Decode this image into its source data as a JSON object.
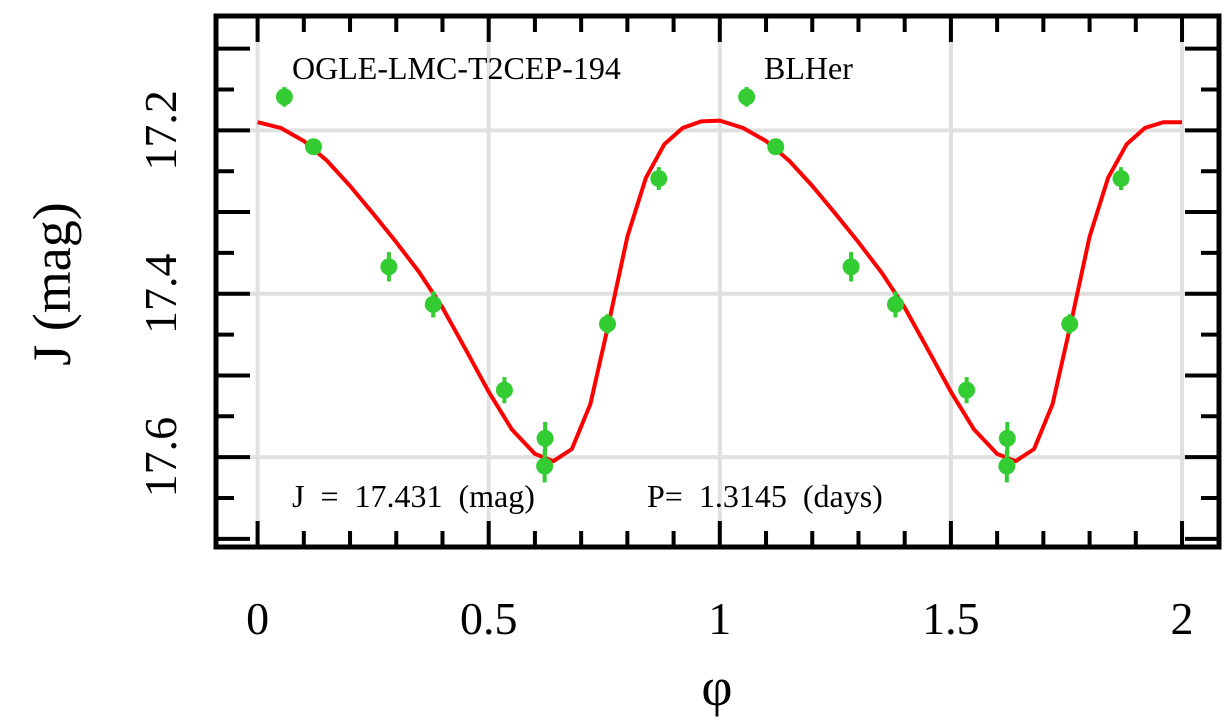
{
  "chart_data": {
    "type": "scatter",
    "title": "",
    "star_name": "OGLE-LMC-T2CEP-194",
    "star_type": "BLHer",
    "xlabel": "φ",
    "ylabel": "J (mag)",
    "xlim": [
      -0.09,
      2.08
    ],
    "ylim": [
      17.71,
      17.06
    ],
    "y_reversed": true,
    "grid": true,
    "x_ticks": [
      0,
      0.5,
      1,
      1.5,
      2
    ],
    "x_tick_labels": [
      "0",
      "0.5",
      "1",
      "1.5",
      "2"
    ],
    "y_ticks": [
      17.2,
      17.4,
      17.6
    ],
    "y_tick_labels": [
      "17.2",
      "17.4",
      "17.6"
    ],
    "mean_mag_text": "J  =  17.431  (mag)",
    "period_text": "P=  1.3145  (days)",
    "colors": {
      "points": "#33cc33",
      "fit": "#ff0000",
      "grid": "#e0e0e0"
    },
    "series": [
      {
        "kind": "observations",
        "points": [
          {
            "x": 0.058,
            "y": 17.159,
            "err": 0.012
          },
          {
            "x": 0.121,
            "y": 17.22,
            "err": 0.01
          },
          {
            "x": 0.284,
            "y": 17.367,
            "err": 0.018
          },
          {
            "x": 0.38,
            "y": 17.413,
            "err": 0.016
          },
          {
            "x": 0.534,
            "y": 17.518,
            "err": 0.016
          },
          {
            "x": 0.622,
            "y": 17.577,
            "err": 0.02
          },
          {
            "x": 0.621,
            "y": 17.611,
            "err": 0.02
          },
          {
            "x": 0.757,
            "y": 17.437,
            "err": 0.012
          },
          {
            "x": 0.868,
            "y": 17.259,
            "err": 0.014
          },
          {
            "x": 1.058,
            "y": 17.159,
            "err": 0.012
          },
          {
            "x": 1.121,
            "y": 17.22,
            "err": 0.01
          },
          {
            "x": 1.284,
            "y": 17.367,
            "err": 0.018
          },
          {
            "x": 1.38,
            "y": 17.413,
            "err": 0.016
          },
          {
            "x": 1.534,
            "y": 17.518,
            "err": 0.016
          },
          {
            "x": 1.622,
            "y": 17.577,
            "err": 0.02
          },
          {
            "x": 1.621,
            "y": 17.611,
            "err": 0.02
          },
          {
            "x": 1.757,
            "y": 17.437,
            "err": 0.012
          },
          {
            "x": 1.868,
            "y": 17.259,
            "err": 0.014
          }
        ]
      },
      {
        "kind": "fit",
        "points": [
          {
            "x": 0.0,
            "y": 17.19
          },
          {
            "x": 0.05,
            "y": 17.197
          },
          {
            "x": 0.1,
            "y": 17.213
          },
          {
            "x": 0.15,
            "y": 17.237
          },
          {
            "x": 0.2,
            "y": 17.268
          },
          {
            "x": 0.25,
            "y": 17.302
          },
          {
            "x": 0.3,
            "y": 17.337
          },
          {
            "x": 0.35,
            "y": 17.374
          },
          {
            "x": 0.4,
            "y": 17.417
          },
          {
            "x": 0.45,
            "y": 17.468
          },
          {
            "x": 0.5,
            "y": 17.52
          },
          {
            "x": 0.55,
            "y": 17.566
          },
          {
            "x": 0.6,
            "y": 17.596
          },
          {
            "x": 0.64,
            "y": 17.605
          },
          {
            "x": 0.68,
            "y": 17.59
          },
          {
            "x": 0.72,
            "y": 17.535
          },
          {
            "x": 0.76,
            "y": 17.435
          },
          {
            "x": 0.8,
            "y": 17.33
          },
          {
            "x": 0.84,
            "y": 17.258
          },
          {
            "x": 0.88,
            "y": 17.217
          },
          {
            "x": 0.92,
            "y": 17.197
          },
          {
            "x": 0.96,
            "y": 17.189
          },
          {
            "x": 1.0,
            "y": 17.188
          },
          {
            "x": 1.05,
            "y": 17.197
          },
          {
            "x": 1.1,
            "y": 17.213
          },
          {
            "x": 1.15,
            "y": 17.237
          },
          {
            "x": 1.2,
            "y": 17.268
          },
          {
            "x": 1.25,
            "y": 17.302
          },
          {
            "x": 1.3,
            "y": 17.337
          },
          {
            "x": 1.35,
            "y": 17.374
          },
          {
            "x": 1.4,
            "y": 17.417
          },
          {
            "x": 1.45,
            "y": 17.468
          },
          {
            "x": 1.5,
            "y": 17.52
          },
          {
            "x": 1.55,
            "y": 17.566
          },
          {
            "x": 1.6,
            "y": 17.596
          },
          {
            "x": 1.64,
            "y": 17.605
          },
          {
            "x": 1.68,
            "y": 17.59
          },
          {
            "x": 1.72,
            "y": 17.535
          },
          {
            "x": 1.76,
            "y": 17.435
          },
          {
            "x": 1.8,
            "y": 17.33
          },
          {
            "x": 1.84,
            "y": 17.258
          },
          {
            "x": 1.88,
            "y": 17.217
          },
          {
            "x": 1.92,
            "y": 17.197
          },
          {
            "x": 1.96,
            "y": 17.19
          },
          {
            "x": 2.0,
            "y": 17.19
          }
        ]
      }
    ]
  }
}
